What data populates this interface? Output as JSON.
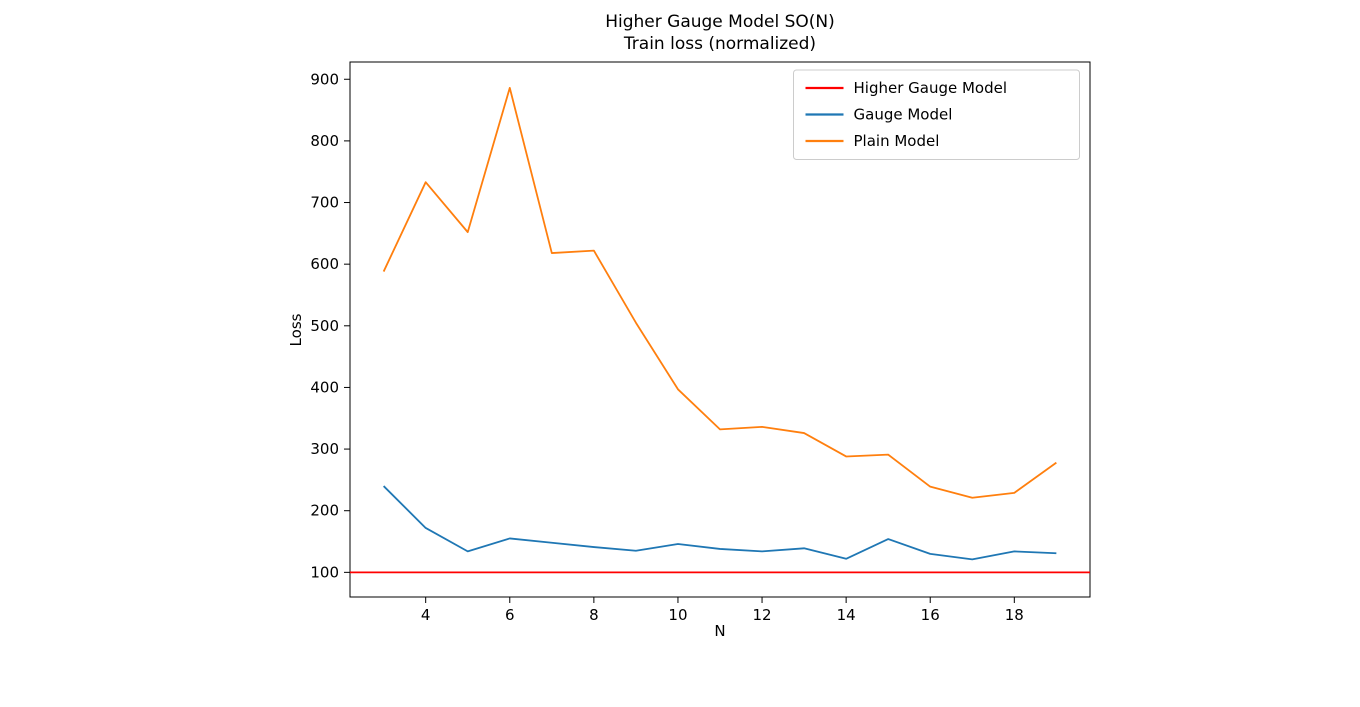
{
  "page": {
    "background": "#ffffff"
  },
  "chart_data": {
    "type": "line",
    "title": "Higher Gauge Model SO(N)",
    "subtitle": "Train loss (normalized)",
    "xlabel": "N",
    "ylabel": "Loss",
    "x": [
      3,
      4,
      5,
      6,
      7,
      8,
      9,
      10,
      11,
      12,
      13,
      14,
      15,
      16,
      17,
      18,
      19
    ],
    "series": [
      {
        "name": "Higher Gauge Model",
        "color": "#ff0000",
        "spans_axes": true,
        "values": [
          100,
          100,
          100,
          100,
          100,
          100,
          100,
          100,
          100,
          100,
          100,
          100,
          100,
          100,
          100,
          100,
          100
        ]
      },
      {
        "name": "Gauge Model",
        "color": "#1f77b4",
        "spans_axes": false,
        "values": [
          240,
          172,
          134,
          155,
          148,
          141,
          135,
          146,
          138,
          134,
          139,
          122,
          154,
          130,
          121,
          134,
          131
        ]
      },
      {
        "name": "Plain Model",
        "color": "#ff7f0e",
        "spans_axes": false,
        "values": [
          588,
          733,
          652,
          886,
          618,
          622,
          505,
          397,
          332,
          336,
          326,
          288,
          291,
          239,
          221,
          229,
          278
        ]
      }
    ],
    "xlim": [
      2.2,
      19.8
    ],
    "ylim": [
      60,
      928
    ],
    "xticks": [
      4,
      6,
      8,
      10,
      12,
      14,
      16,
      18
    ],
    "yticks": [
      100,
      200,
      300,
      400,
      500,
      600,
      700,
      800,
      900
    ],
    "legend_position": "upper right",
    "grid": false
  }
}
